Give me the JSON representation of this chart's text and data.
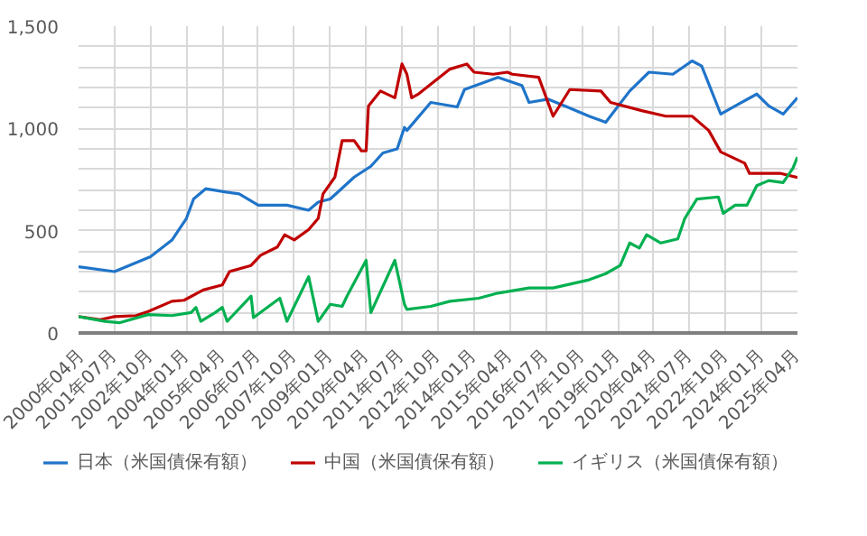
{
  "chart_data": {
    "type": "line",
    "xlim": [
      "2000-04",
      "2025-04"
    ],
    "xticks": [
      {
        "value": "2000-04",
        "label": "2000年04月"
      },
      {
        "value": "2001-07",
        "label": "2001年07月"
      },
      {
        "value": "2002-10",
        "label": "2002年10月"
      },
      {
        "value": "2004-01",
        "label": "2004年01月"
      },
      {
        "value": "2005-04",
        "label": "2005年04月"
      },
      {
        "value": "2006-07",
        "label": "2006年07月"
      },
      {
        "value": "2007-10",
        "label": "2007年10月"
      },
      {
        "value": "2009-01",
        "label": "2009年01月"
      },
      {
        "value": "2010-04",
        "label": "2010年04月"
      },
      {
        "value": "2011-07",
        "label": "2011年07月"
      },
      {
        "value": "2012-10",
        "label": "2012年10月"
      },
      {
        "value": "2014-01",
        "label": "2014年01月"
      },
      {
        "value": "2015-04",
        "label": "2015年04月"
      },
      {
        "value": "2016-07",
        "label": "2016年07月"
      },
      {
        "value": "2017-10",
        "label": "2017年10月"
      },
      {
        "value": "2019-01",
        "label": "2019年01月"
      },
      {
        "value": "2020-04",
        "label": "2020年04月"
      },
      {
        "value": "2021-07",
        "label": "2021年07月"
      },
      {
        "value": "2022-10",
        "label": "2022年10月"
      },
      {
        "value": "2024-01",
        "label": "2024年01月"
      },
      {
        "value": "2025-04",
        "label": "2025年04月"
      }
    ],
    "ylim": [
      0,
      1500
    ],
    "yticks": [
      {
        "value": 0,
        "label": "0"
      },
      {
        "value": 100,
        "label": null
      },
      {
        "value": 200,
        "label": null
      },
      {
        "value": 300,
        "label": null
      },
      {
        "value": 400,
        "label": null
      },
      {
        "value": 500,
        "label": "500"
      },
      {
        "value": 600,
        "label": null
      },
      {
        "value": 700,
        "label": null
      },
      {
        "value": 800,
        "label": null
      },
      {
        "value": 900,
        "label": null
      },
      {
        "value": 1000,
        "label": "1,000"
      },
      {
        "value": 1100,
        "label": null
      },
      {
        "value": 1200,
        "label": null
      },
      {
        "value": 1300,
        "label": null
      },
      {
        "value": 1400,
        "label": null
      },
      {
        "value": 1500,
        "label": "1,500"
      }
    ],
    "grid": true,
    "legend": "bottom",
    "series": [
      {
        "name": "日本（米国債保有額）",
        "color": "#1f74c9",
        "x": [
          "2000-04",
          "2001-07",
          "2002-10",
          "2003-07",
          "2004-01",
          "2004-04",
          "2004-09",
          "2005-05",
          "2005-11",
          "2006-07",
          "2007-07",
          "2008-04",
          "2008-08",
          "2009-01",
          "2009-05",
          "2009-11",
          "2010-06",
          "2010-11",
          "2011-05",
          "2011-08",
          "2011-09",
          "2012-07",
          "2013-06",
          "2013-09",
          "2014-11",
          "2015-09",
          "2015-12",
          "2016-08",
          "2017-03",
          "2018-01",
          "2018-08",
          "2019-06",
          "2020-02",
          "2020-12",
          "2021-08",
          "2021-12",
          "2022-08",
          "2023-02",
          "2023-11",
          "2024-04",
          "2024-10",
          "2025-04"
        ],
        "values": [
          324,
          300,
          373,
          454,
          560,
          655,
          705,
          690,
          680,
          625,
          625,
          600,
          640,
          655,
          697,
          762,
          815,
          880,
          900,
          1005,
          990,
          1127,
          1105,
          1190,
          1250,
          1210,
          1127,
          1143,
          1110,
          1060,
          1030,
          1183,
          1275,
          1265,
          1330,
          1305,
          1070,
          1110,
          1168,
          1110,
          1070,
          1150
        ]
      },
      {
        "name": "中国（米国債保有額）",
        "color": "#c00000",
        "x": [
          "2000-04",
          "2001-01",
          "2001-07",
          "2002-04",
          "2002-09",
          "2003-07",
          "2003-12",
          "2004-08",
          "2005-04",
          "2005-07",
          "2006-04",
          "2006-08",
          "2007-03",
          "2007-06",
          "2007-10",
          "2008-04",
          "2008-08",
          "2008-10",
          "2009-03",
          "2009-06",
          "2009-11",
          "2010-02",
          "2010-04",
          "2010-05",
          "2010-10",
          "2011-04",
          "2011-07",
          "2011-09",
          "2011-11",
          "2012-02",
          "2013-03",
          "2013-10",
          "2014-01",
          "2014-09",
          "2015-03",
          "2015-05",
          "2016-04",
          "2016-10",
          "2017-05",
          "2018-06",
          "2018-10",
          "2019-11",
          "2020-09",
          "2021-08",
          "2022-03",
          "2022-08",
          "2023-06",
          "2023-08",
          "2024-04",
          "2024-09",
          "2025-04"
        ],
        "values": [
          80,
          65,
          80,
          85,
          105,
          155,
          160,
          210,
          235,
          300,
          330,
          380,
          420,
          480,
          455,
          505,
          560,
          680,
          762,
          940,
          940,
          890,
          890,
          1110,
          1183,
          1150,
          1315,
          1265,
          1150,
          1170,
          1290,
          1315,
          1275,
          1265,
          1275,
          1265,
          1250,
          1060,
          1190,
          1183,
          1127,
          1087,
          1060,
          1060,
          990,
          885,
          830,
          780,
          780,
          780,
          760
        ]
      },
      {
        "name": "イギリス（米国債保有額）",
        "color": "#00b050",
        "x": [
          "2000-04",
          "2001-03",
          "2001-09",
          "2002-09",
          "2003-07",
          "2004-03",
          "2004-05",
          "2004-07",
          "2005-01",
          "2005-04",
          "2005-06",
          "2006-04",
          "2006-05",
          "2007-04",
          "2007-07",
          "2007-10",
          "2008-04",
          "2008-08",
          "2009-01",
          "2009-06",
          "2009-08",
          "2010-04",
          "2010-06",
          "2011-04",
          "2011-08",
          "2011-09",
          "2012-07",
          "2013-03",
          "2014-03",
          "2014-11",
          "2015-12",
          "2016-10",
          "2018-01",
          "2018-08",
          "2019-02",
          "2019-06",
          "2019-10",
          "2020-01",
          "2020-07",
          "2021-02",
          "2021-05",
          "2021-10",
          "2022-07",
          "2022-09",
          "2023-02",
          "2023-07",
          "2023-11",
          "2024-04",
          "2024-10",
          "2025-02",
          "2025-04"
        ],
        "values": [
          80,
          57,
          50,
          90,
          85,
          100,
          125,
          57,
          100,
          125,
          57,
          180,
          75,
          170,
          57,
          130,
          275,
          57,
          140,
          130,
          180,
          355,
          100,
          355,
          140,
          115,
          130,
          155,
          170,
          195,
          220,
          220,
          260,
          290,
          330,
          440,
          415,
          480,
          440,
          460,
          560,
          655,
          665,
          585,
          625,
          625,
          720,
          745,
          735,
          805,
          860
        ]
      }
    ]
  }
}
